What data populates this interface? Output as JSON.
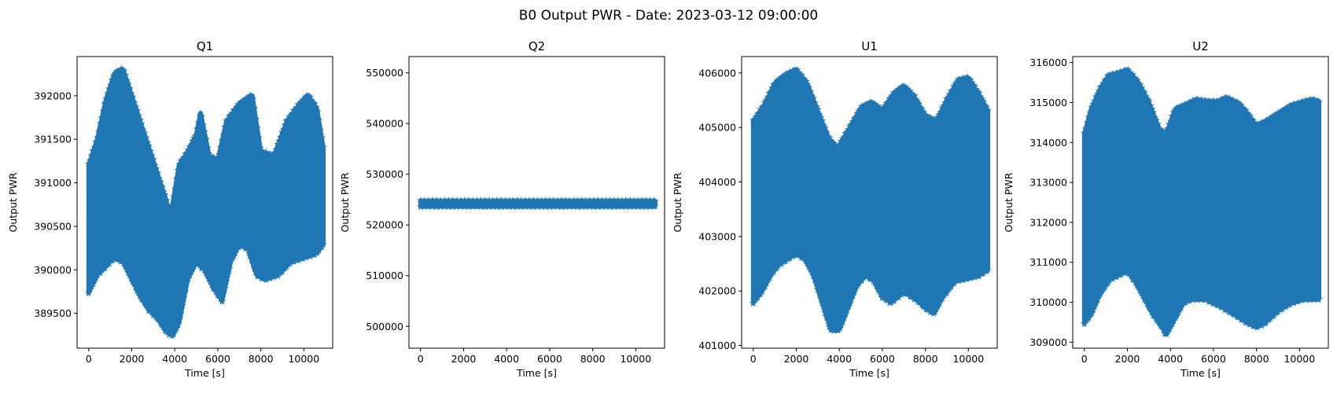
{
  "figure": {
    "title": "B0 Output PWR - Date: 2023-03-12 09:00:00",
    "marker_color": "#1f77b4",
    "marker": "star"
  },
  "chart_data": [
    {
      "type": "scatter",
      "title": "Q1",
      "xlabel": "Time [s]",
      "ylabel": "Output PWR",
      "xlim": [
        -540,
        11340
      ],
      "ylim": [
        389100,
        392450
      ],
      "xticks": [
        0,
        2000,
        4000,
        6000,
        8000,
        10000
      ],
      "yticks": [
        389500,
        390000,
        390500,
        391000,
        391500,
        392000
      ],
      "series": [
        {
          "upper": [
            [
              0,
              391200
            ],
            [
              400,
              391500
            ],
            [
              800,
              391950
            ],
            [
              1200,
              392250
            ],
            [
              1600,
              392300
            ],
            [
              2000,
              392000
            ],
            [
              2400,
              391700
            ],
            [
              2800,
              391400
            ],
            [
              3200,
              391100
            ],
            [
              3600,
              390800
            ],
            [
              3800,
              390600
            ],
            [
              4200,
              391200
            ],
            [
              4600,
              391350
            ],
            [
              5000,
              391550
            ],
            [
              5200,
              391800
            ],
            [
              5600,
              391300
            ],
            [
              6000,
              391250
            ],
            [
              6400,
              391700
            ],
            [
              7000,
              391900
            ],
            [
              7600,
              392000
            ],
            [
              8000,
              391350
            ],
            [
              8600,
              391300
            ],
            [
              9200,
              391700
            ],
            [
              9800,
              391900
            ],
            [
              10200,
              392000
            ],
            [
              10600,
              391850
            ],
            [
              10900,
              391400
            ]
          ],
          "lower": [
            [
              0,
              389750
            ],
            [
              400,
              389950
            ],
            [
              800,
              390050
            ],
            [
              1200,
              390150
            ],
            [
              1600,
              390100
            ],
            [
              2000,
              389900
            ],
            [
              2400,
              389700
            ],
            [
              2800,
              389550
            ],
            [
              3200,
              389450
            ],
            [
              3600,
              389300
            ],
            [
              3900,
              389250
            ],
            [
              4200,
              389400
            ],
            [
              4600,
              389900
            ],
            [
              5000,
              390100
            ],
            [
              5400,
              390000
            ],
            [
              5800,
              389800
            ],
            [
              6200,
              389650
            ],
            [
              6600,
              390100
            ],
            [
              7000,
              390300
            ],
            [
              7400,
              390250
            ],
            [
              7800,
              389950
            ],
            [
              8200,
              389900
            ],
            [
              8800,
              389950
            ],
            [
              9400,
              390100
            ],
            [
              10000,
              390150
            ],
            [
              10600,
              390200
            ],
            [
              10900,
              390300
            ]
          ]
        }
      ]
    },
    {
      "type": "scatter",
      "title": "Q2",
      "xlabel": "Time [s]",
      "ylabel": "Output PWR",
      "xlim": [
        -540,
        11340
      ],
      "ylim": [
        495700,
        553200
      ],
      "xticks": [
        0,
        2000,
        4000,
        6000,
        8000,
        10000
      ],
      "yticks": [
        500000,
        510000,
        520000,
        530000,
        540000,
        550000
      ],
      "series": [
        {
          "upper": [
            [
              0,
              524500
            ],
            [
              10900,
              524500
            ]
          ],
          "lower": [
            [
              0,
              523900
            ],
            [
              10900,
              523900
            ]
          ]
        }
      ]
    },
    {
      "type": "scatter",
      "title": "U1",
      "xlabel": "Time [s]",
      "ylabel": "Output PWR",
      "xlim": [
        -540,
        11340
      ],
      "ylim": [
        400950,
        406300
      ],
      "xticks": [
        0,
        2000,
        4000,
        6000,
        8000,
        10000
      ],
      "yticks": [
        401000,
        402000,
        403000,
        404000,
        405000,
        406000
      ],
      "series": [
        {
          "upper": [
            [
              0,
              405100
            ],
            [
              500,
              405400
            ],
            [
              1000,
              405800
            ],
            [
              1500,
              405950
            ],
            [
              2000,
              406050
            ],
            [
              2500,
              405800
            ],
            [
              3000,
              405300
            ],
            [
              3500,
              404800
            ],
            [
              3900,
              404600
            ],
            [
              4500,
              405000
            ],
            [
              5000,
              405350
            ],
            [
              5500,
              405450
            ],
            [
              6000,
              405300
            ],
            [
              6500,
              405600
            ],
            [
              7000,
              405750
            ],
            [
              7500,
              405550
            ],
            [
              8000,
              405200
            ],
            [
              8500,
              405100
            ],
            [
              9000,
              405500
            ],
            [
              9500,
              405850
            ],
            [
              10000,
              405900
            ],
            [
              10500,
              405600
            ],
            [
              10900,
              405300
            ]
          ],
          "lower": [
            [
              0,
              401800
            ],
            [
              400,
              402000
            ],
            [
              800,
              402300
            ],
            [
              1200,
              402500
            ],
            [
              1600,
              402600
            ],
            [
              2000,
              402700
            ],
            [
              2400,
              402600
            ],
            [
              2800,
              402300
            ],
            [
              3200,
              401800
            ],
            [
              3600,
              401300
            ],
            [
              4000,
              401300
            ],
            [
              4400,
              401700
            ],
            [
              4800,
              402100
            ],
            [
              5200,
              402300
            ],
            [
              5600,
              402200
            ],
            [
              6000,
              401900
            ],
            [
              6400,
              401800
            ],
            [
              7000,
              402000
            ],
            [
              7600,
              401850
            ],
            [
              8000,
              401700
            ],
            [
              8400,
              401600
            ],
            [
              8800,
              401900
            ],
            [
              9400,
              402200
            ],
            [
              10000,
              402250
            ],
            [
              10500,
              402300
            ],
            [
              10900,
              402400
            ]
          ]
        }
      ]
    },
    {
      "type": "scatter",
      "title": "U2",
      "xlabel": "Time [s]",
      "ylabel": "Output PWR",
      "xlim": [
        -540,
        11340
      ],
      "ylim": [
        308850,
        316150
      ],
      "xticks": [
        0,
        2000,
        4000,
        6000,
        8000,
        10000
      ],
      "yticks": [
        309000,
        310000,
        311000,
        312000,
        313000,
        314000,
        315000,
        316000
      ],
      "series": [
        {
          "upper": [
            [
              0,
              314200
            ],
            [
              300,
              314800
            ],
            [
              700,
              315300
            ],
            [
              1100,
              315650
            ],
            [
              1500,
              315700
            ],
            [
              2000,
              315800
            ],
            [
              2500,
              315500
            ],
            [
              3000,
              315000
            ],
            [
              3500,
              314300
            ],
            [
              3800,
              314200
            ],
            [
              4200,
              314800
            ],
            [
              4600,
              314900
            ],
            [
              5200,
              315050
            ],
            [
              5800,
              315000
            ],
            [
              6200,
              315000
            ],
            [
              6600,
              315100
            ],
            [
              7200,
              314950
            ],
            [
              7600,
              314700
            ],
            [
              8000,
              314400
            ],
            [
              8400,
              314500
            ],
            [
              9000,
              314700
            ],
            [
              9600,
              314900
            ],
            [
              10200,
              315000
            ],
            [
              10600,
              315050
            ],
            [
              10900,
              315000
            ]
          ],
          "lower": [
            [
              0,
              309500
            ],
            [
              300,
              309700
            ],
            [
              700,
              310200
            ],
            [
              1200,
              310600
            ],
            [
              1600,
              310700
            ],
            [
              2000,
              310800
            ],
            [
              2400,
              310500
            ],
            [
              2800,
              310100
            ],
            [
              3200,
              309700
            ],
            [
              3600,
              309400
            ],
            [
              3800,
              309200
            ],
            [
              4200,
              309600
            ],
            [
              4600,
              310000
            ],
            [
              5000,
              310100
            ],
            [
              5600,
              310100
            ],
            [
              6000,
              310000
            ],
            [
              6400,
              309900
            ],
            [
              7000,
              309700
            ],
            [
              7600,
              309500
            ],
            [
              8000,
              309400
            ],
            [
              8400,
              309500
            ],
            [
              9000,
              309800
            ],
            [
              9600,
              310000
            ],
            [
              10200,
              310100
            ],
            [
              10900,
              310100
            ]
          ]
        }
      ]
    }
  ]
}
